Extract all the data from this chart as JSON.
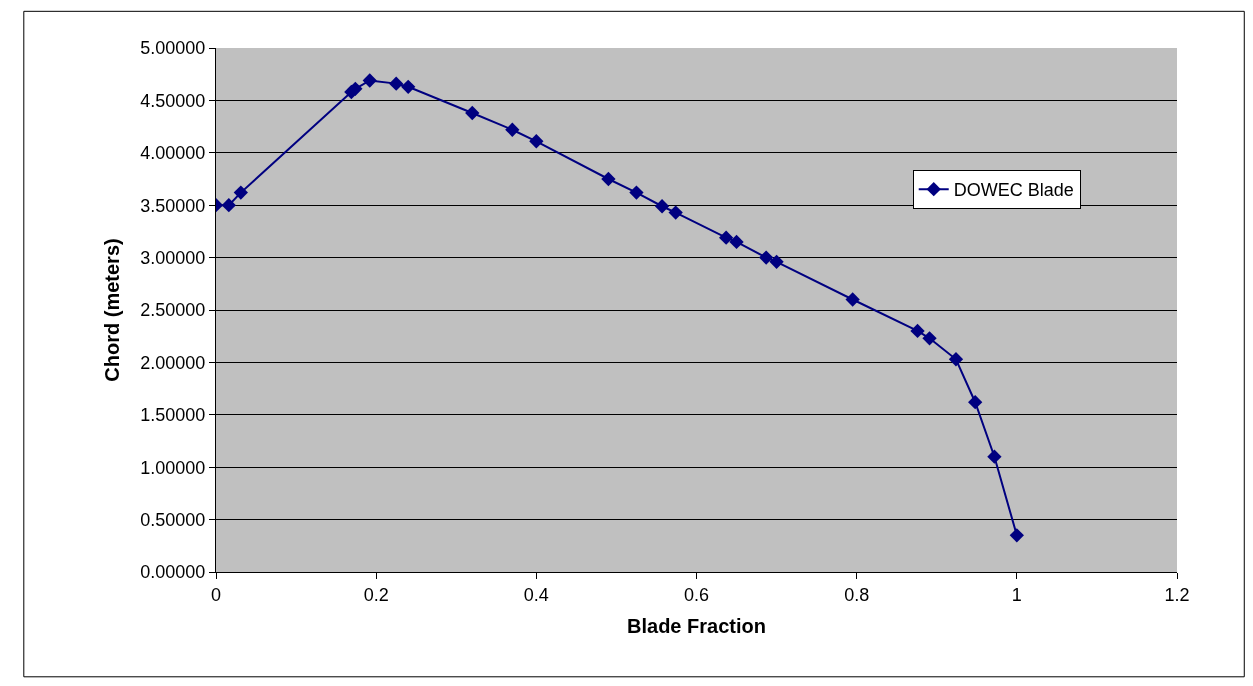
{
  "chart_data": {
    "type": "line",
    "xlabel": "Blade Fraction",
    "ylabel": "Chord (meters)",
    "xlim": [
      0,
      1.2
    ],
    "xticks": [
      0,
      0.2,
      0.4,
      0.6,
      0.8,
      1,
      1.2
    ],
    "ylim": [
      0,
      5
    ],
    "yticks": [
      {
        "value": 0,
        "label": "0.00000"
      },
      {
        "value": 0.5,
        "label": "0.50000"
      },
      {
        "value": 1,
        "label": "1.00000"
      },
      {
        "value": 1.5,
        "label": "1.50000"
      },
      {
        "value": 2,
        "label": "2.00000"
      },
      {
        "value": 2.5,
        "label": "2.50000"
      },
      {
        "value": 3,
        "label": "3.00000"
      },
      {
        "value": 3.5,
        "label": "3.50000"
      },
      {
        "value": 4,
        "label": "4.00000"
      },
      {
        "value": 4.5,
        "label": "4.50000"
      },
      {
        "value": 5,
        "label": "5.00000"
      }
    ],
    "grid": "y",
    "legend": "right",
    "marker": "diamond",
    "line_style": "solid",
    "series": [
      {
        "name": "DOWEC Blade",
        "color": "#000080",
        "x": [
          0,
          0.016,
          0.031,
          0.169,
          0.174,
          0.192,
          0.225,
          0.24,
          0.32,
          0.37,
          0.4,
          0.49,
          0.525,
          0.557,
          0.574,
          0.637,
          0.65,
          0.687,
          0.7,
          0.795,
          0.876,
          0.891,
          0.924,
          0.948,
          0.972,
          1.0
        ],
        "values": [
          3.5,
          3.5,
          3.62,
          4.58,
          4.61,
          4.69,
          4.66,
          4.63,
          4.38,
          4.22,
          4.11,
          3.75,
          3.62,
          3.49,
          3.43,
          3.19,
          3.15,
          3.0,
          2.96,
          2.6,
          2.3,
          2.23,
          2.03,
          1.62,
          1.1,
          0.35
        ]
      }
    ]
  }
}
